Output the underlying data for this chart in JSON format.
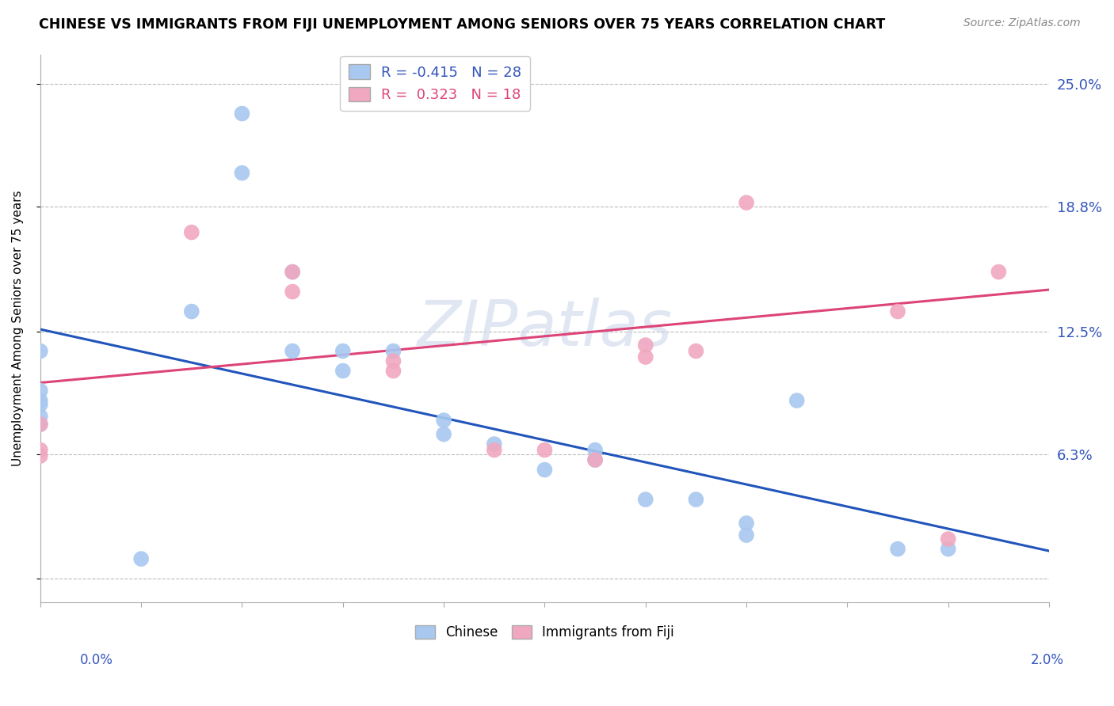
{
  "title": "CHINESE VS IMMIGRANTS FROM FIJI UNEMPLOYMENT AMONG SENIORS OVER 75 YEARS CORRELATION CHART",
  "source": "Source: ZipAtlas.com",
  "ylabel": "Unemployment Among Seniors over 75 years",
  "ytick_vals": [
    0.0,
    0.063,
    0.125,
    0.188,
    0.25
  ],
  "ytick_labels": [
    "",
    "6.3%",
    "12.5%",
    "18.8%",
    "25.0%"
  ],
  "xmin": 0.0,
  "xmax": 0.02,
  "ymin": -0.012,
  "ymax": 0.265,
  "legend_r_chinese": "-0.415",
  "legend_n_chinese": "28",
  "legend_r_fiji": "0.323",
  "legend_n_fiji": "18",
  "chinese_color": "#a8c8f0",
  "fiji_color": "#f0a8c0",
  "chinese_line_color": "#2255bb",
  "fiji_line_color": "#dd4477",
  "watermark": "ZIPatlas",
  "chinese_line": [
    [
      0.0,
      0.126
    ],
    [
      0.02,
      0.014
    ]
  ],
  "fiji_line": [
    [
      0.0,
      0.099
    ],
    [
      0.02,
      0.146
    ]
  ],
  "chinese_points": [
    [
      0.0,
      0.115
    ],
    [
      0.0,
      0.095
    ],
    [
      0.0,
      0.09
    ],
    [
      0.0,
      0.088
    ],
    [
      0.0,
      0.082
    ],
    [
      0.0,
      0.078
    ],
    [
      0.002,
      0.01
    ],
    [
      0.003,
      0.135
    ],
    [
      0.004,
      0.235
    ],
    [
      0.004,
      0.205
    ],
    [
      0.005,
      0.155
    ],
    [
      0.005,
      0.115
    ],
    [
      0.006,
      0.115
    ],
    [
      0.006,
      0.105
    ],
    [
      0.007,
      0.115
    ],
    [
      0.008,
      0.08
    ],
    [
      0.008,
      0.073
    ],
    [
      0.009,
      0.068
    ],
    [
      0.01,
      0.055
    ],
    [
      0.011,
      0.065
    ],
    [
      0.011,
      0.06
    ],
    [
      0.012,
      0.04
    ],
    [
      0.013,
      0.04
    ],
    [
      0.014,
      0.028
    ],
    [
      0.014,
      0.022
    ],
    [
      0.015,
      0.09
    ],
    [
      0.017,
      0.015
    ],
    [
      0.018,
      0.015
    ]
  ],
  "fiji_points": [
    [
      0.0,
      0.078
    ],
    [
      0.0,
      0.065
    ],
    [
      0.0,
      0.062
    ],
    [
      0.003,
      0.175
    ],
    [
      0.005,
      0.155
    ],
    [
      0.005,
      0.145
    ],
    [
      0.007,
      0.11
    ],
    [
      0.007,
      0.105
    ],
    [
      0.009,
      0.065
    ],
    [
      0.01,
      0.065
    ],
    [
      0.011,
      0.06
    ],
    [
      0.012,
      0.118
    ],
    [
      0.012,
      0.112
    ],
    [
      0.013,
      0.115
    ],
    [
      0.014,
      0.19
    ],
    [
      0.017,
      0.135
    ],
    [
      0.018,
      0.02
    ],
    [
      0.019,
      0.155
    ]
  ],
  "xtick_positions": [
    0.0,
    0.002,
    0.004,
    0.006,
    0.008,
    0.01,
    0.012,
    0.014,
    0.016,
    0.018,
    0.02
  ]
}
